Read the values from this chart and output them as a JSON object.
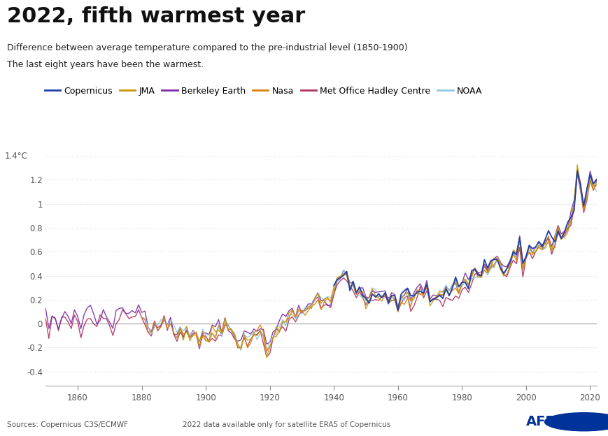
{
  "title": "2022, fifth warmest year",
  "subtitle1": "Difference between average temperature compared to the pre-industrial level (1850-1900)",
  "subtitle2": "The last eight years have been the warmest.",
  "source_left": "Sources: Copernicus C3S/ECMWF",
  "source_right": "2022 data available only for satellite ERA5 of Copernicus",
  "ylabel_top": "1.4°C",
  "yticks": [
    1.2,
    1.0,
    0.8,
    0.6,
    0.4,
    0.2,
    0.0,
    -0.2,
    -0.4
  ],
  "ytick_labels": [
    "1.2",
    "1",
    "0.8",
    "0.6",
    "0.4",
    "0.2",
    "0",
    "-0.2",
    "-0.4"
  ],
  "xticks": [
    1860,
    1880,
    1900,
    1920,
    1940,
    1960,
    1980,
    2000,
    2020
  ],
  "xlim": [
    1850,
    2022
  ],
  "ylim": [
    -0.52,
    1.5
  ],
  "legend": [
    "Copernicus",
    "JMA",
    "Berkeley Earth",
    "Nasa",
    "Met Office Hadley Centre",
    "NOAA"
  ],
  "line_colors": [
    "#1f3fa8",
    "#c8960c",
    "#7b2ca8",
    "#d4820a",
    "#b03060",
    "#90c8e0"
  ],
  "background": "#ffffff",
  "grid_color": "#c8c8c8",
  "title_fontsize": 22,
  "subtitle_fontsize": 9,
  "legend_fontsize": 9
}
